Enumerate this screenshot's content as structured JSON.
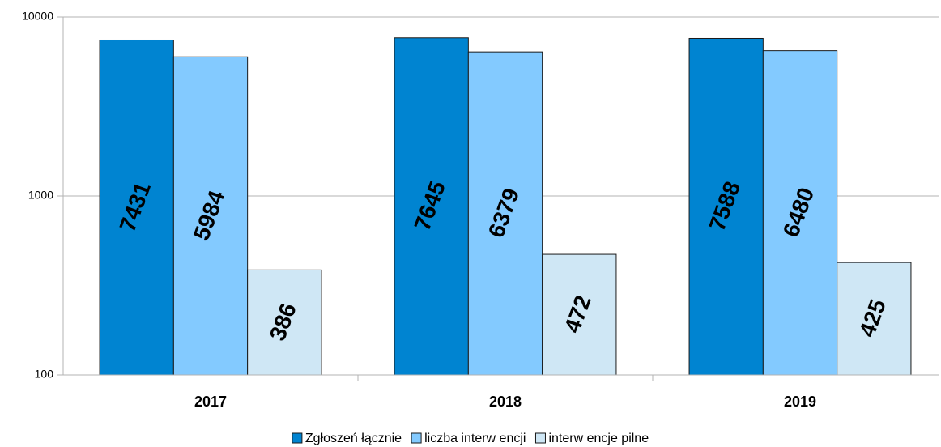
{
  "chart_data": {
    "type": "bar",
    "log_scale": true,
    "grid": true,
    "legend": "bottom",
    "categories": [
      "2017",
      "2018",
      "2019"
    ],
    "series": [
      {
        "name": "Zgłoszeń łącznie",
        "color": "#0084d1",
        "values": [
          7431,
          7645,
          7588
        ]
      },
      {
        "name": "liczba interw encji",
        "color": "#83caff",
        "values": [
          5984,
          6379,
          6480
        ]
      },
      {
        "name": "interw encje pilne",
        "color": "#cfe7f5",
        "values": [
          386,
          472,
          425
        ]
      }
    ],
    "ylim": [
      100,
      10000
    ],
    "yticks": [
      100,
      1000,
      10000
    ]
  }
}
